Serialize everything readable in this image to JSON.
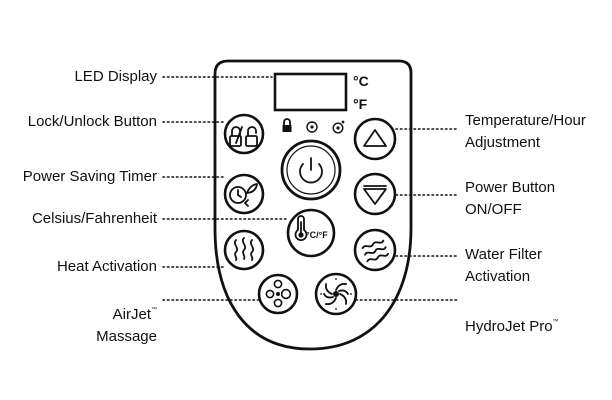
{
  "labels": {
    "led_display": "LED Display",
    "lock_unlock": "Lock/Unlock Button",
    "power_saving_timer": "Power Saving Timer",
    "celsius_fahrenheit": "Celsius/Fahrenheit",
    "heat_activation": "Heat Activation",
    "airjet_line1": "AirJet",
    "airjet_tm": "™",
    "airjet_line2": "Massage",
    "temp_hour_line1": "Temperature/Hour",
    "temp_hour_line2": "Adjustment",
    "power_button_line1": "Power Button",
    "power_button_line2": "ON/OFF",
    "water_filter_line1": "Water Filter",
    "water_filter_line2": "Activation",
    "hydrojet": "HydroJet Pro",
    "hydrojet_tm": "™"
  },
  "panel": {
    "unit_c": "°C",
    "unit_f": "°F",
    "cf_button_text": "°C/°F"
  }
}
